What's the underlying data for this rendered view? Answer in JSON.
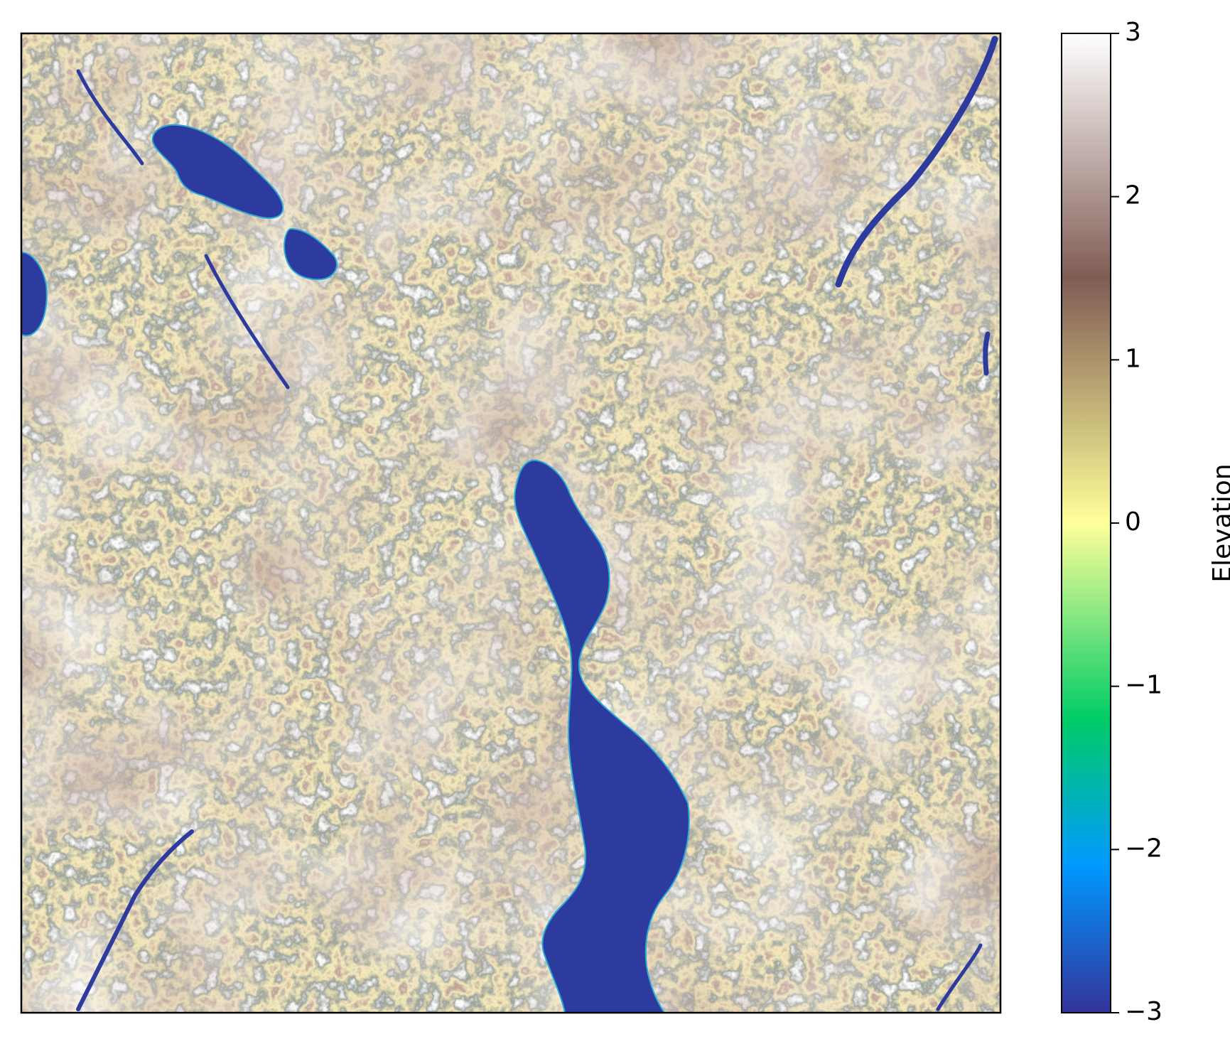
{
  "chart_data": {
    "type": "heatmap",
    "title": "",
    "xlabel": "",
    "ylabel": "",
    "description_visible": "Elevation raster rendered with a terrain colormap; no axis ticks on the map",
    "colorbar": {
      "label": "Elevation",
      "min": -3,
      "max": 3,
      "ticks": [
        -3,
        -2,
        -1,
        0,
        1,
        2,
        3
      ],
      "tick_labels": [
        "−3",
        "−2",
        "−1",
        "0",
        "1",
        "2",
        "3"
      ],
      "colormap": "terrain",
      "stops": [
        {
          "value": -3.0,
          "color": "#333399"
        },
        {
          "value": -2.1,
          "color": "#0099ff"
        },
        {
          "value": -1.2,
          "color": "#00cc66"
        },
        {
          "value": 0.0,
          "color": "#ffff99"
        },
        {
          "value": 1.5,
          "color": "#805c54"
        },
        {
          "value": 3.0,
          "color": "#ffffff"
        }
      ]
    },
    "features": [
      {
        "name": "main-lake",
        "elevation": -3
      },
      {
        "name": "northwest-lake",
        "elevation": -3
      },
      {
        "name": "small-lake",
        "elevation": -3
      },
      {
        "name": "west-edge-lake",
        "elevation": -3
      },
      {
        "name": "white-ridges",
        "elevation": 3
      }
    ]
  }
}
